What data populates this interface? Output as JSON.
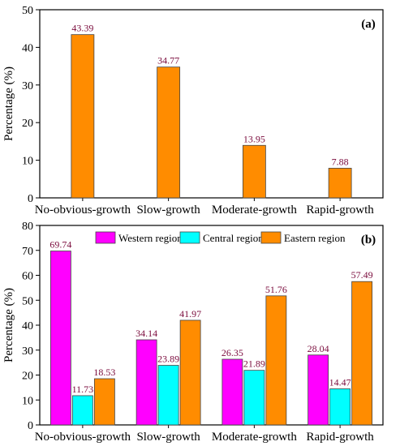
{
  "chart_data": [
    {
      "panel_label": "(a)",
      "type": "bar",
      "categories": [
        "No-obvious-growth",
        "Slow-growth",
        "Moderate-growth",
        "Rapid-growth"
      ],
      "values": [
        43.39,
        34.77,
        13.95,
        7.88
      ],
      "data_labels": [
        "43.39",
        "34.77",
        "13.95",
        "7.88"
      ],
      "ylabel": "Percentage (%)",
      "ylim": [
        0,
        50
      ],
      "yticks": [
        0,
        10,
        20,
        30,
        40,
        50
      ],
      "color": "#FF8C00",
      "grid": false,
      "legend": false
    },
    {
      "panel_label": "(b)",
      "type": "bar",
      "categories": [
        "No-obvious-growth",
        "Slow-growth",
        "Moderate-growth",
        "Rapid-growth"
      ],
      "series": [
        {
          "name": "Western region",
          "values": [
            69.74,
            34.14,
            26.35,
            28.04
          ],
          "labels": [
            "69.74",
            "34.14",
            "26.35",
            "28.04"
          ],
          "color": "#FF00FF"
        },
        {
          "name": "Central region",
          "values": [
            11.73,
            23.89,
            21.89,
            14.47
          ],
          "labels": [
            "11.73",
            "23.89",
            "21.89",
            "14.47"
          ],
          "color": "#00FFFF"
        },
        {
          "name": "Eastern region",
          "values": [
            18.53,
            41.97,
            51.76,
            57.49
          ],
          "labels": [
            "18.53",
            "41.97",
            "51.76",
            "57.49"
          ],
          "color": "#FF8C00"
        }
      ],
      "ylabel": "Percentage (%)",
      "ylim": [
        0,
        80
      ],
      "yticks": [
        0,
        10,
        20,
        30,
        40,
        50,
        60,
        70,
        80
      ],
      "grid": false,
      "legend": "top-center"
    }
  ]
}
